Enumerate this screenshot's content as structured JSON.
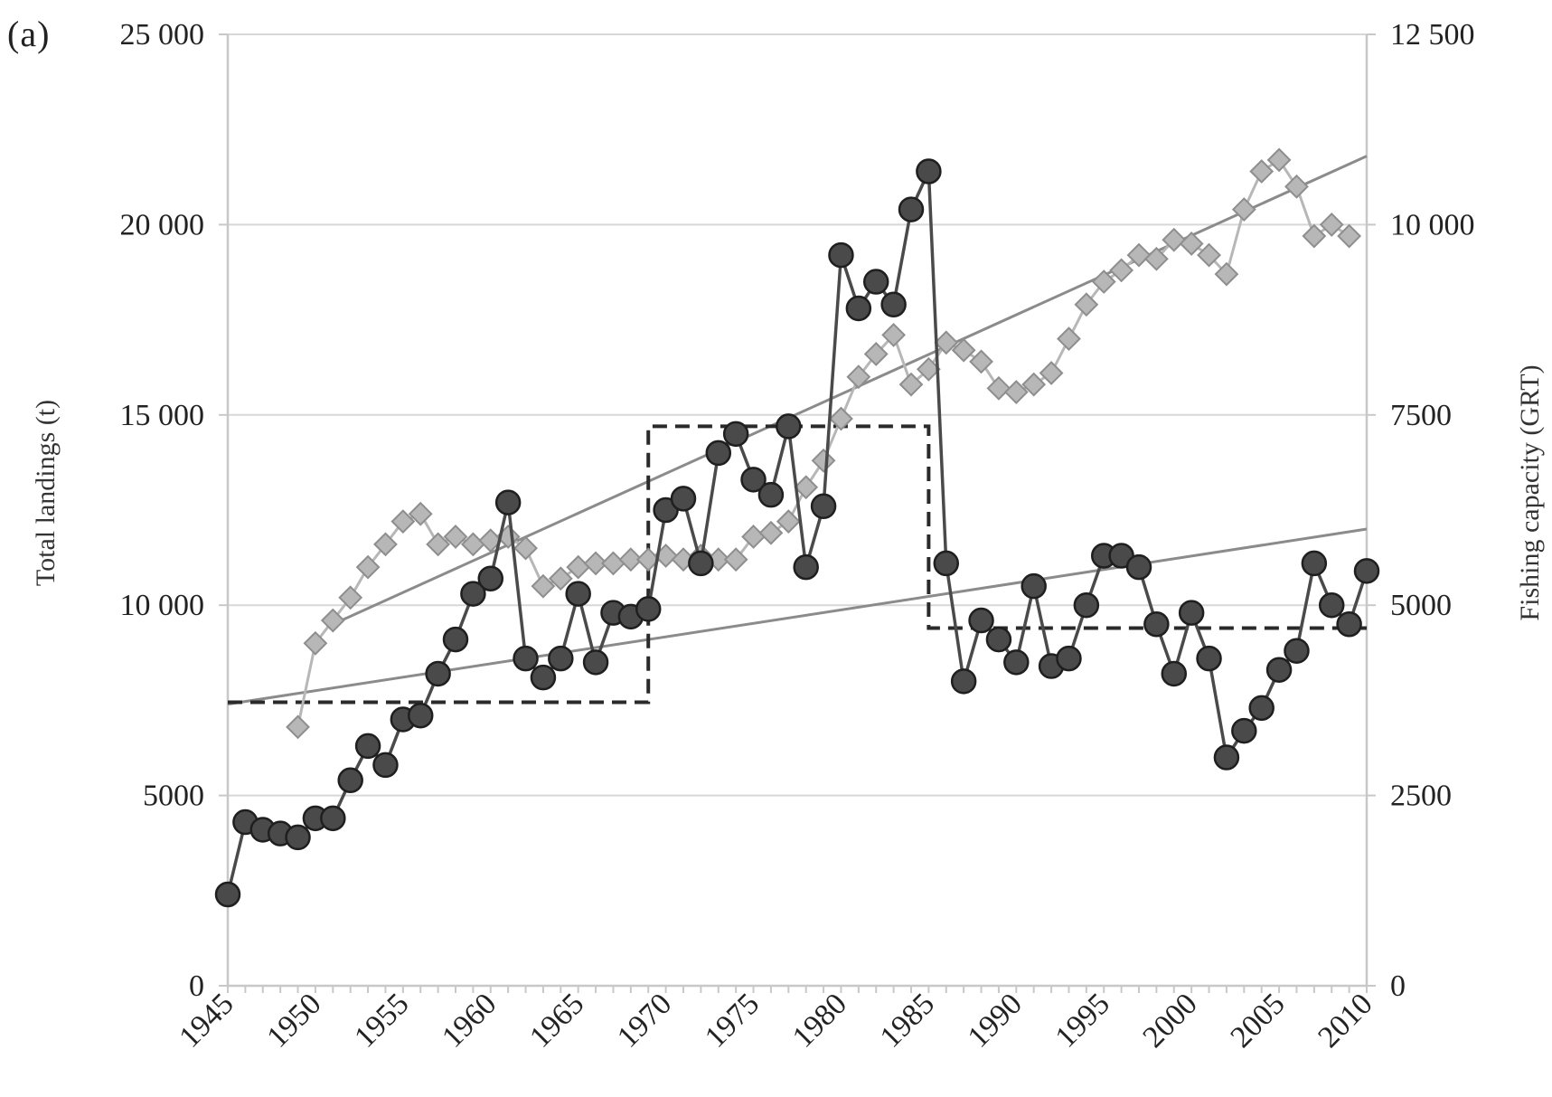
{
  "figure": {
    "panel_label": "(a)"
  },
  "colors": {
    "landings": "#4a4a4a",
    "landings_edge": "#1f1f1f",
    "capacity": "#b7b7b7",
    "capacity_edge": "#8e8e8e",
    "trend": "#8b8b8b",
    "step": "#2a2a2a",
    "grid": "#d7d7d7"
  },
  "chart_data": {
    "type": "line",
    "title": "",
    "xlabel": "",
    "ylabel": "Total landings (t)",
    "y2label": "Fishing capacity (GRT)",
    "xlim": [
      1945,
      2010
    ],
    "ylim": [
      0,
      25000
    ],
    "y2lim": [
      0,
      12500
    ],
    "grid": true,
    "x_tick_labels": [
      "1945",
      "1950",
      "1955",
      "1960",
      "1965",
      "1970",
      "1975",
      "1980",
      "1985",
      "1990",
      "1995",
      "2000",
      "2005",
      "2010"
    ],
    "y_tick_labels": [
      "0",
      "5000",
      "10 000",
      "15 000",
      "20 000",
      "25 000"
    ],
    "y2_tick_labels": [
      "0",
      "2500",
      "5000",
      "7500",
      "10 000",
      "12 500"
    ],
    "series": [
      {
        "axis": "left",
        "marker": "circle",
        "x": [
          1945,
          1946,
          1947,
          1948,
          1949,
          1950,
          1951,
          1952,
          1953,
          1954,
          1955,
          1956,
          1957,
          1958,
          1959,
          1960,
          1961,
          1962,
          1963,
          1964,
          1965,
          1966,
          1967,
          1968,
          1969,
          1970,
          1971,
          1972,
          1973,
          1974,
          1975,
          1976,
          1977,
          1978,
          1979,
          1980,
          1981,
          1982,
          1983,
          1984,
          1985,
          1986,
          1987,
          1988,
          1989,
          1990,
          1991,
          1992,
          1993,
          1994,
          1995,
          1996,
          1997,
          1998,
          1999,
          2000,
          2001,
          2002,
          2003,
          2004,
          2005,
          2006,
          2007,
          2008,
          2009,
          2010
        ],
        "y": [
          2400,
          4300,
          4100,
          4000,
          3900,
          4400,
          4400,
          5400,
          6300,
          5800,
          7000,
          7100,
          8200,
          9100,
          10300,
          10700,
          12700,
          8600,
          8100,
          8600,
          10300,
          8500,
          9800,
          9700,
          9900,
          12500,
          12800,
          11100,
          14000,
          14500,
          13300,
          12900,
          14700,
          11000,
          12600,
          19200,
          17800,
          18500,
          17900,
          20400,
          21400,
          11100,
          8000,
          9600,
          9100,
          8500,
          10500,
          8400,
          8600,
          10000,
          11300,
          11300,
          11000,
          9500,
          8200,
          9800,
          8600,
          6000,
          6700,
          7300,
          8300,
          8800,
          11100,
          10000,
          9500,
          10900
        ]
      },
      {
        "axis": "right",
        "marker": "diamond",
        "x": [
          1949,
          1950,
          1951,
          1952,
          1953,
          1954,
          1955,
          1956,
          1957,
          1958,
          1959,
          1960,
          1961,
          1962,
          1963,
          1964,
          1965,
          1966,
          1967,
          1968,
          1969,
          1970,
          1971,
          1972,
          1973,
          1974,
          1975,
          1976,
          1977,
          1978,
          1979,
          1980,
          1981,
          1982,
          1983,
          1984,
          1985,
          1986,
          1987,
          1988,
          1989,
          1990,
          1991,
          1992,
          1993,
          1994,
          1995,
          1996,
          1997,
          1998,
          1999,
          2000,
          2001,
          2002,
          2003,
          2004,
          2005,
          2006,
          2007,
          2008,
          2009
        ],
        "y": [
          3400,
          4500,
          4800,
          5100,
          5500,
          5800,
          6100,
          6200,
          5800,
          5900,
          5800,
          5850,
          5900,
          5750,
          5250,
          5350,
          5500,
          5550,
          5550,
          5600,
          5600,
          5650,
          5600,
          5650,
          5600,
          5600,
          5900,
          5950,
          6100,
          6550,
          6900,
          7450,
          8000,
          8300,
          8550,
          7900,
          8100,
          8450,
          8350,
          8200,
          7850,
          7800,
          7900,
          8050,
          8500,
          8950,
          9250,
          9400,
          9600,
          9550,
          9800,
          9750,
          9600,
          9350,
          10200,
          10700,
          10850,
          10500,
          9850,
          10000,
          9850
        ]
      }
    ],
    "trend_lines": [
      {
        "axis": "right",
        "x": [
          1951,
          2010
        ],
        "y": [
          4750,
          10900
        ]
      },
      {
        "axis": "left",
        "x": [
          1945,
          2010
        ],
        "y": [
          7400,
          12000
        ]
      }
    ],
    "step_line": {
      "axis": "left",
      "x": [
        1945,
        1969,
        1969,
        1985,
        1985,
        2010
      ],
      "y": [
        7450,
        7450,
        14700,
        14700,
        9400,
        9400
      ]
    }
  }
}
